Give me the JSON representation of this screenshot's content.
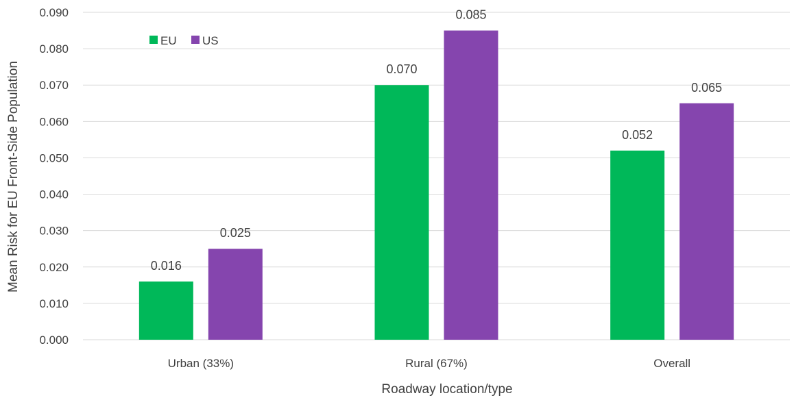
{
  "chart_data": {
    "type": "bar",
    "categories": [
      "Urban (33%)",
      "Rural (67%)",
      "Overall"
    ],
    "series": [
      {
        "name": "EU",
        "values": [
          0.016,
          0.07,
          0.052
        ],
        "labels": [
          "0.016",
          "0.070",
          "0.052"
        ],
        "color": "#00b859"
      },
      {
        "name": "US",
        "values": [
          0.025,
          0.085,
          0.065
        ],
        "labels": [
          "0.025",
          "0.085",
          "0.065"
        ],
        "color": "#8545ae"
      }
    ],
    "xlabel": "Roadway location/type",
    "ylabel": "Mean Risk for EU Front-Side Population",
    "ylim": [
      0,
      0.09
    ],
    "yticks": [
      "0.000",
      "0.010",
      "0.020",
      "0.030",
      "0.040",
      "0.050",
      "0.060",
      "0.070",
      "0.080",
      "0.090"
    ],
    "grid": true,
    "legend_position": "top-left"
  }
}
